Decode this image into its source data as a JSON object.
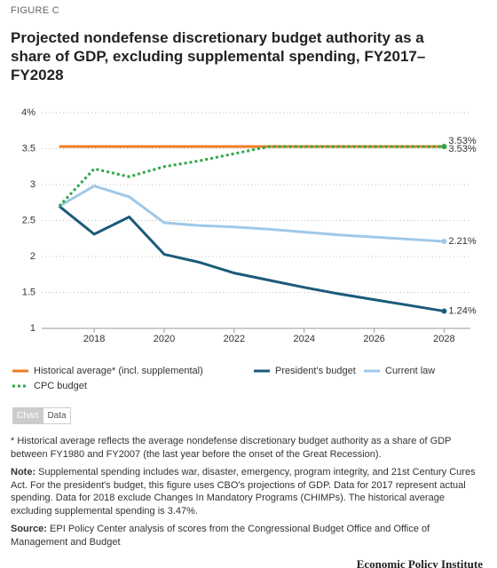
{
  "figure_label": "FIGURE C",
  "chart_data": {
    "type": "line",
    "title": "Projected nondefense discretionary budget authority as a share of GDP, excluding supplemental spending, FY2017–FY2028",
    "x": [
      2017,
      2018,
      2019,
      2020,
      2021,
      2022,
      2023,
      2024,
      2025,
      2026,
      2027,
      2028
    ],
    "xlim": [
      2016.5,
      2028.75
    ],
    "xticks": [
      2018,
      2020,
      2022,
      2024,
      2026,
      2028
    ],
    "ylim": [
      1,
      4
    ],
    "yticks": [
      1,
      1.5,
      2,
      2.5,
      3,
      3.5,
      {
        "value": 4,
        "label": "4%"
      }
    ],
    "grid": true,
    "series": [
      {
        "name": "Historical average* (incl. supplemental)",
        "color": "#f07d22",
        "style": "solid",
        "values": [
          3.53,
          3.53,
          3.53,
          3.53,
          3.53,
          3.53,
          3.53,
          3.53,
          3.53,
          3.53,
          3.53,
          3.53
        ],
        "value_labels": [
          null,
          null,
          null,
          null,
          null,
          null,
          null,
          null,
          null,
          null,
          null,
          "3.53%"
        ]
      },
      {
        "name": "President's budget",
        "color": "#1b5a7a",
        "style": "solid",
        "values": [
          2.7,
          2.31,
          2.55,
          2.03,
          1.92,
          1.77,
          1.67,
          1.57,
          1.48,
          1.4,
          1.32,
          1.24
        ],
        "value_labels": [
          null,
          null,
          null,
          null,
          null,
          null,
          null,
          null,
          null,
          null,
          null,
          "1.24%"
        ]
      },
      {
        "name": "Current law",
        "color": "#9fc8e8",
        "style": "solid",
        "values": [
          2.7,
          2.98,
          2.83,
          2.47,
          2.43,
          2.41,
          2.38,
          2.34,
          2.3,
          2.27,
          2.24,
          2.21
        ],
        "value_labels": [
          null,
          null,
          null,
          null,
          null,
          null,
          null,
          null,
          null,
          null,
          null,
          "2.21%"
        ]
      },
      {
        "name": "CPC budget",
        "color": "#2ea84a",
        "style": "dotted",
        "values": [
          2.7,
          3.22,
          3.11,
          3.25,
          3.33,
          3.43,
          3.53,
          3.53,
          3.53,
          3.53,
          3.53,
          3.53
        ],
        "value_labels": [
          null,
          null,
          null,
          null,
          null,
          null,
          null,
          null,
          null,
          null,
          null,
          "3.53%"
        ]
      }
    ]
  },
  "tabs": [
    "Chart",
    "Data"
  ],
  "notes": [
    {
      "label": null,
      "text": "* Historical average reflects the average nondefense discretionary budget authority as a share of GDP between FY1980 and FY2007 (the last year before the onset of the Great Recession)."
    },
    {
      "label": "Note:",
      "text": "Supplemental spending includes war, disaster, emergency, program integrity, and 21st Century Cures Act. For the president's budget, this figure uses CBO's projections of GDP. Data for 2017 represent actual spending. Data for 2018 exclude Changes In Mandatory Programs (CHIMPs). The historical average excluding supplemental spending is 3.47%."
    },
    {
      "label": "Source:",
      "text": "EPI Policy Center analysis of scores from the Congressional Budget Office and Office of Management and Budget"
    }
  ],
  "branding": "Economic Policy Institute"
}
